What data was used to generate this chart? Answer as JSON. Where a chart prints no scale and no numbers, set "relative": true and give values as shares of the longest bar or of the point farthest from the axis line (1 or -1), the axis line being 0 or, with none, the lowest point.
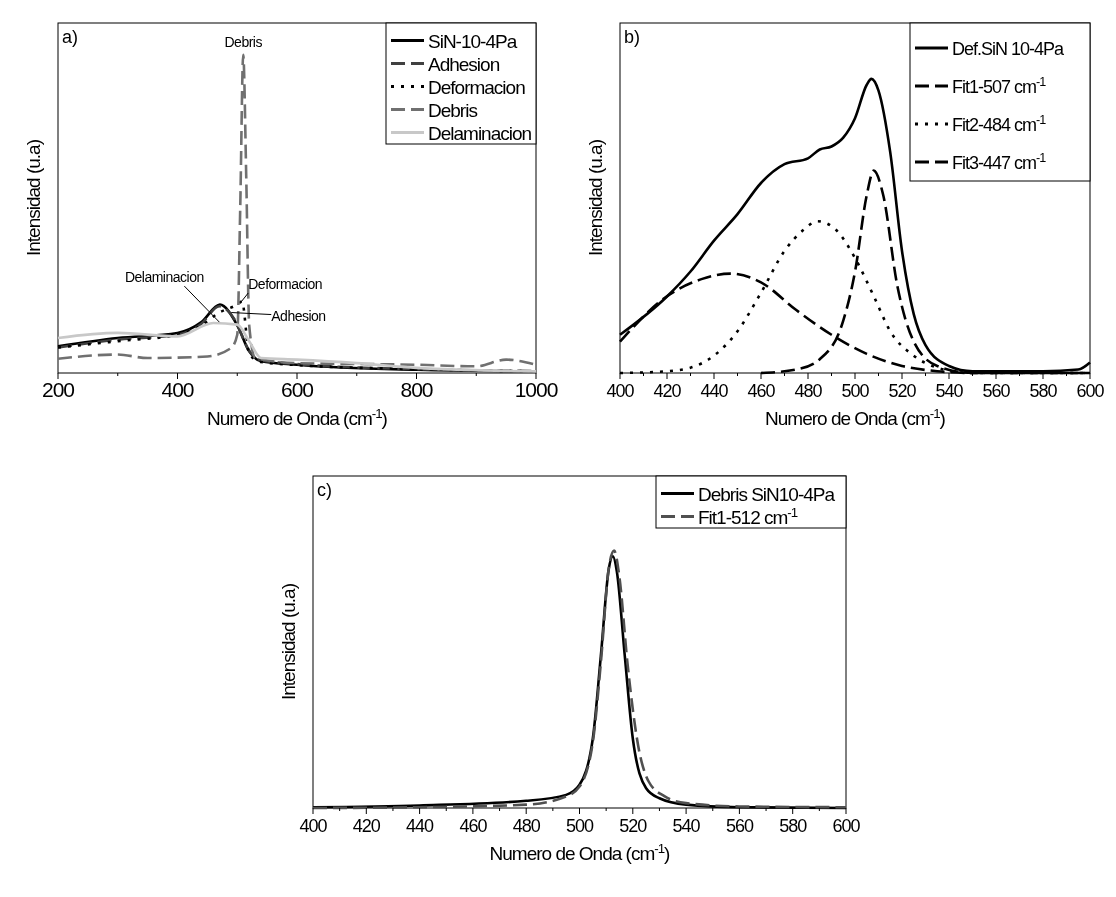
{
  "chart_data": [
    {
      "type": "line",
      "title": "a)",
      "xlabel": "Numero de Onda (cm$^{-1}$)",
      "ylabel": "Intensidad (u.a)",
      "relative": true,
      "tick_labels": "x",
      "xlim": [
        200,
        1000
      ],
      "xticks": [
        200,
        400,
        600,
        800,
        1000
      ],
      "legend": "top right",
      "grid": false,
      "annotations": [
        {
          "text": "Debris",
          "x": 510,
          "y": 1
        },
        {
          "text": "Delaminacion",
          "x": 470,
          "y": 0.16
        },
        {
          "text": "Deformacion",
          "x": 505,
          "y": 0.22
        },
        {
          "text": "Adhesion",
          "x": 490,
          "y": 0.19
        }
      ],
      "series": [
        {
          "name": "SiN-10-4Pa",
          "color": "#000000",
          "line_style": "solid",
          "x": [
            200,
            300,
            400,
            440,
            471,
            500,
            520,
            540,
            600,
            800,
            1000
          ],
          "values": [
            0.084,
            0.11,
            0.126,
            0.16,
            0.215,
            0.15,
            0.068,
            0.037,
            0.026,
            0.01,
            0.005
          ]
        },
        {
          "name": "Adhesion",
          "color": "#404040",
          "line_style": "dashed",
          "x": [
            200,
            300,
            400,
            440,
            470,
            495,
            520,
            540,
            600,
            800,
            1000
          ],
          "values": [
            0.08,
            0.105,
            0.12,
            0.155,
            0.21,
            0.17,
            0.07,
            0.04,
            0.028,
            0.012,
            0.006
          ]
        },
        {
          "name": "Deformacion",
          "color": "#000000",
          "line_style": "dotted",
          "x": [
            200,
            300,
            400,
            440,
            470,
            500,
            508,
            520,
            540,
            600,
            800,
            1000
          ],
          "values": [
            0.08,
            0.1,
            0.12,
            0.15,
            0.19,
            0.215,
            0.225,
            0.06,
            0.035,
            0.025,
            0.012,
            0.005
          ]
        },
        {
          "name": "Debris",
          "color": "#707070",
          "line_style": "dashed",
          "x": [
            200,
            300,
            350,
            450,
            490,
            500,
            505,
            510,
            515,
            520,
            530,
            600,
            800,
            900,
            950,
            1000
          ],
          "values": [
            0.045,
            0.058,
            0.047,
            0.052,
            0.079,
            0.12,
            0.52,
            1,
            0.62,
            0.15,
            0.047,
            0.031,
            0.026,
            0.021,
            0.042,
            0.026
          ]
        },
        {
          "name": "Delaminacion",
          "color": "#c8c8c8",
          "line_style": "solid",
          "x": [
            200,
            300,
            400,
            460,
            500,
            520,
            540,
            600,
            700,
            800,
            1000
          ],
          "values": [
            0.11,
            0.126,
            0.115,
            0.157,
            0.152,
            0.1,
            0.047,
            0.042,
            0.031,
            0.016,
            0.005
          ]
        }
      ]
    },
    {
      "type": "line",
      "title": "b)",
      "xlabel": "Numero de Onda (cm$^{-1}$)",
      "ylabel": "Intensidad (u.a)",
      "relative": true,
      "tick_labels": "x",
      "xlim": [
        400,
        600
      ],
      "xticks": [
        400,
        420,
        440,
        460,
        480,
        500,
        520,
        540,
        560,
        580,
        600
      ],
      "legend": "top right",
      "grid": false,
      "series": [
        {
          "name": "Def.SiN 10-4Pa",
          "color": "#000000",
          "line_style": "solid",
          "x": [
            400,
            420,
            430,
            440,
            450,
            460,
            470,
            480,
            485,
            490,
            495,
            500,
            505,
            507,
            510,
            515,
            520,
            525,
            530,
            540,
            550,
            580,
            595,
            600
          ],
          "values": [
            0.13,
            0.26,
            0.345,
            0.45,
            0.54,
            0.646,
            0.71,
            0.73,
            0.76,
            0.77,
            0.8,
            0.866,
            0.98,
            1,
            0.96,
            0.75,
            0.415,
            0.2,
            0.095,
            0.024,
            0.006,
            0.006,
            0.012,
            0.036
          ]
        },
        {
          "name": "Fit1-507 cm$^{-1}$",
          "color": "#000000",
          "line_style": "dashed",
          "x": [
            460,
            475,
            485,
            495,
            500,
            505,
            508,
            512,
            518,
            525,
            535,
            550,
            600
          ],
          "values": [
            0,
            0.012,
            0.047,
            0.178,
            0.344,
            0.605,
            0.688,
            0.605,
            0.297,
            0.107,
            0.024,
            0,
            0
          ]
        },
        {
          "name": "Fit2-484 cm$^{-1}$",
          "color": "#000000",
          "line_style": "dotted",
          "x": [
            400,
            420,
            430,
            440,
            450,
            460,
            470,
            478,
            484,
            492,
            500,
            508,
            515,
            525,
            535,
            550,
            600
          ],
          "values": [
            0,
            0.006,
            0.018,
            0.059,
            0.142,
            0.273,
            0.415,
            0.486,
            0.516,
            0.486,
            0.391,
            0.261,
            0.142,
            0.059,
            0.018,
            0,
            0
          ]
        },
        {
          "name": "Fit3-447 cm$^{-1}$",
          "color": "#000000",
          "line_style": "dashed",
          "x": [
            400,
            420,
            435,
            447,
            460,
            475,
            490,
            505,
            520,
            535,
            550,
            600
          ],
          "values": [
            0.107,
            0.261,
            0.32,
            0.338,
            0.308,
            0.214,
            0.13,
            0.065,
            0.024,
            0.006,
            0,
            0
          ]
        }
      ]
    },
    {
      "type": "line",
      "title": "c)",
      "xlabel": "Numero de Onda (cm$^{-1}$)",
      "ylabel": "Intensidad (u.a)",
      "relative": true,
      "tick_labels": "x",
      "xlim": [
        400,
        600
      ],
      "xticks": [
        400,
        420,
        440,
        460,
        480,
        500,
        520,
        540,
        560,
        580,
        600
      ],
      "legend": "top right",
      "grid": false,
      "series": [
        {
          "name": "Debris SiN10-4Pa",
          "color": "#000000",
          "line_style": "solid",
          "x": [
            400,
            440,
            480,
            495,
            500,
            505,
            508,
            511,
            512.5,
            514,
            517,
            520,
            525,
            530,
            540,
            560,
            600
          ],
          "values": [
            0.003,
            0.01,
            0.028,
            0.051,
            0.09,
            0.27,
            0.59,
            0.93,
            0.978,
            0.92,
            0.59,
            0.27,
            0.077,
            0.038,
            0.013,
            0.003,
            0
          ]
        },
        {
          "name": "Fit1-512 cm$^{-1}$",
          "color": "#505050",
          "line_style": "dashed",
          "x": [
            400,
            440,
            480,
            495,
            500,
            505,
            508,
            511,
            513,
            515,
            518,
            522,
            526,
            532,
            540,
            560,
            600
          ],
          "values": [
            0,
            0.003,
            0.013,
            0.045,
            0.083,
            0.256,
            0.563,
            0.933,
            1,
            0.895,
            0.563,
            0.243,
            0.102,
            0.045,
            0.019,
            0.006,
            0.003
          ]
        }
      ]
    }
  ]
}
